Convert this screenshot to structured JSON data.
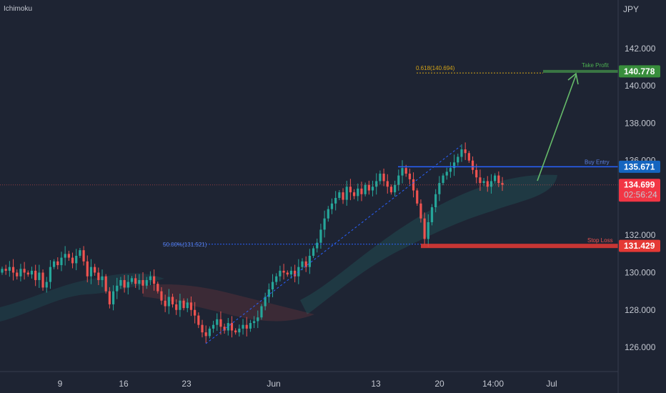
{
  "indicator": "Ichimoku",
  "currency": "JPY",
  "colors": {
    "background": "#1e2433",
    "up": "#26a69a",
    "down": "#ef5350",
    "take_profit": "#388e3c",
    "buy_entry": "#1565c0",
    "stop_loss": "#e53935",
    "current": "#f23645",
    "fib": "#d4a317",
    "grid": "#363c4e"
  },
  "chart_data": {
    "type": "candlestick",
    "y_ticks": [
      "126.000",
      "128.000",
      "130.000",
      "132.000",
      "134.000",
      "136.000",
      "138.000",
      "140.000",
      "142.000"
    ],
    "x_ticks": [
      "9",
      "16",
      "23",
      "Jun",
      "13",
      "20",
      "14:00",
      "Jul"
    ],
    "ylim": [
      124.7,
      144.6
    ],
    "levels": {
      "take_profit": {
        "label": "Take Profit",
        "value": "140.778"
      },
      "buy_entry": {
        "label": "Buy Entry",
        "value": "135.671"
      },
      "stop_loss": {
        "label": "Stop Loss",
        "value": "131.429"
      },
      "current": {
        "value": "134.699",
        "countdown": "02:56:24"
      }
    },
    "fib_levels": [
      {
        "label": "0.618(140.694)",
        "value": 140.694
      },
      {
        "label": "50.00%(131.521)",
        "value": 131.521
      }
    ],
    "closes": [
      130.2,
      130.1,
      130.3,
      130.0,
      129.8,
      130.2,
      130.0,
      129.9,
      130.1,
      129.6,
      130.0,
      129.2,
      129.5,
      130.3,
      130.6,
      130.4,
      130.8,
      131.0,
      130.8,
      130.5,
      130.9,
      131.2,
      130.6,
      129.8,
      130.3,
      130.0,
      129.6,
      129.8,
      129.0,
      128.3,
      129.0,
      129.3,
      129.6,
      129.2,
      129.5,
      129.7,
      129.4,
      129.6,
      129.3,
      129.6,
      129.8,
      129.4,
      129.0,
      128.5,
      128.2,
      128.7,
      128.3,
      128.0,
      128.5,
      128.1,
      128.4,
      128.0,
      127.7,
      127.2,
      126.8,
      126.6,
      127.0,
      127.2,
      127.5,
      127.1,
      126.9,
      127.3,
      126.9,
      126.8,
      127.0,
      127.2,
      127.0,
      127.3,
      127.4,
      127.6,
      128.2,
      128.7,
      129.1,
      129.5,
      129.8,
      130.1,
      130.0,
      129.9,
      130.1,
      129.8,
      130.3,
      130.6,
      130.3,
      130.9,
      131.3,
      131.6,
      132.3,
      132.9,
      133.4,
      133.7,
      134.0,
      134.3,
      133.9,
      134.6,
      134.3,
      134.1,
      134.5,
      134.2,
      134.7,
      134.4,
      134.6,
      134.9,
      135.3,
      134.9,
      134.6,
      134.3,
      134.7,
      135.2,
      135.6,
      135.3,
      135.0,
      134.4,
      133.7,
      132.9,
      131.8,
      132.7,
      133.5,
      134.2,
      134.8,
      135.2,
      135.4,
      135.6,
      135.9,
      136.2,
      136.6,
      136.4,
      136.0,
      135.5,
      135.1,
      134.8,
      134.9,
      134.6,
      134.9,
      135.2,
      134.8,
      134.699
    ]
  }
}
